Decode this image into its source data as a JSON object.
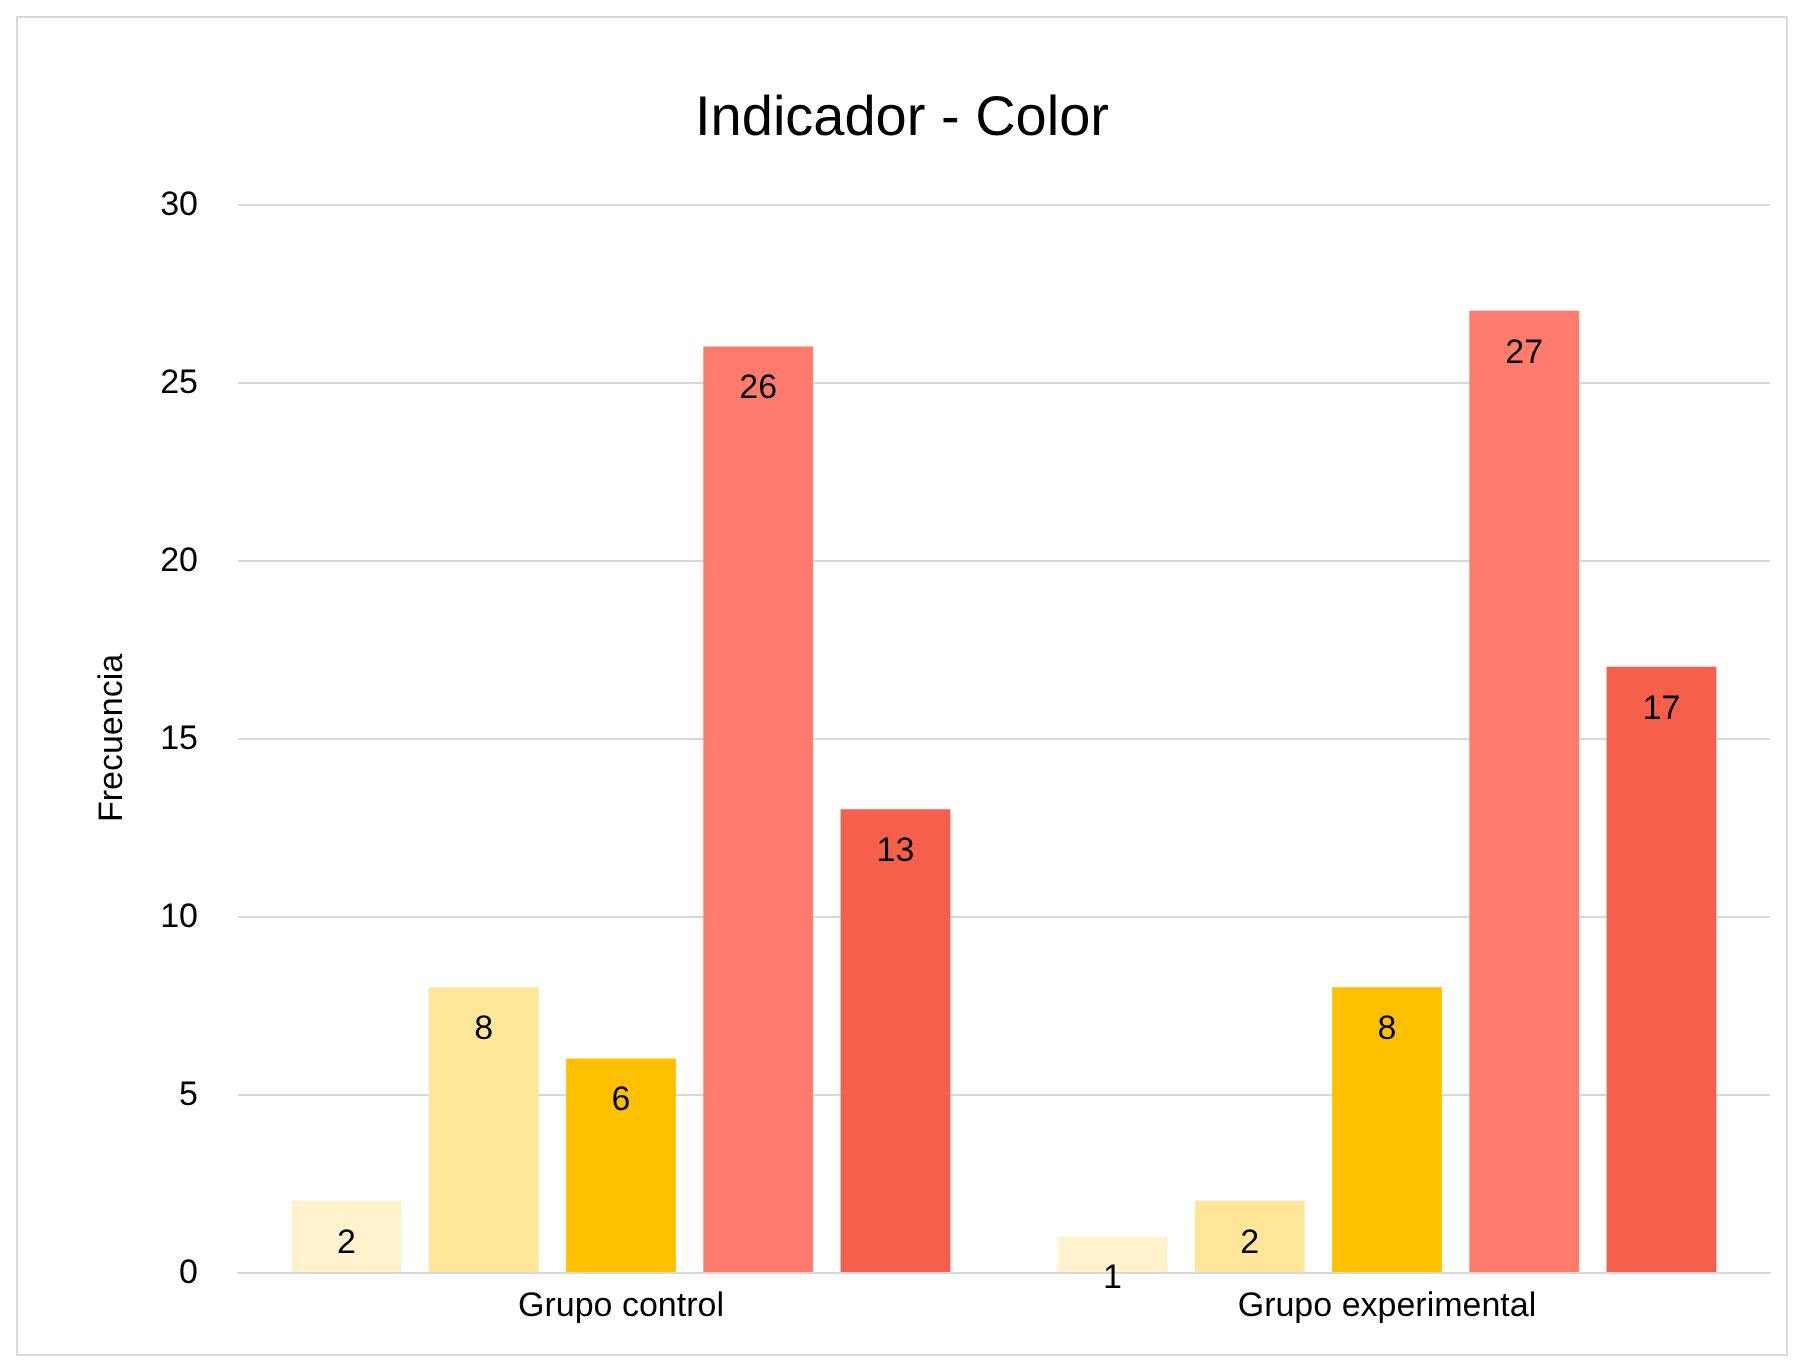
{
  "chart_data": {
    "type": "bar",
    "title": "Indicador - Color",
    "ylabel": "Frecuencia",
    "categories": [
      "Grupo control",
      "Grupo experimental"
    ],
    "series": [
      {
        "color": "#fff2cc",
        "values": [
          2,
          1
        ]
      },
      {
        "color": "#ffe699",
        "values": [
          8,
          2
        ]
      },
      {
        "color": "#ffc000",
        "values": [
          6,
          8
        ]
      },
      {
        "color": "#ff7b6b",
        "values": [
          26,
          27
        ]
      },
      {
        "color": "#f4604c",
        "values": [
          13,
          17
        ]
      }
    ],
    "ylim": [
      0,
      30
    ],
    "yticks": [
      0,
      5,
      10,
      15,
      20,
      25,
      30
    ],
    "grid": "y",
    "data_labels": true
  }
}
